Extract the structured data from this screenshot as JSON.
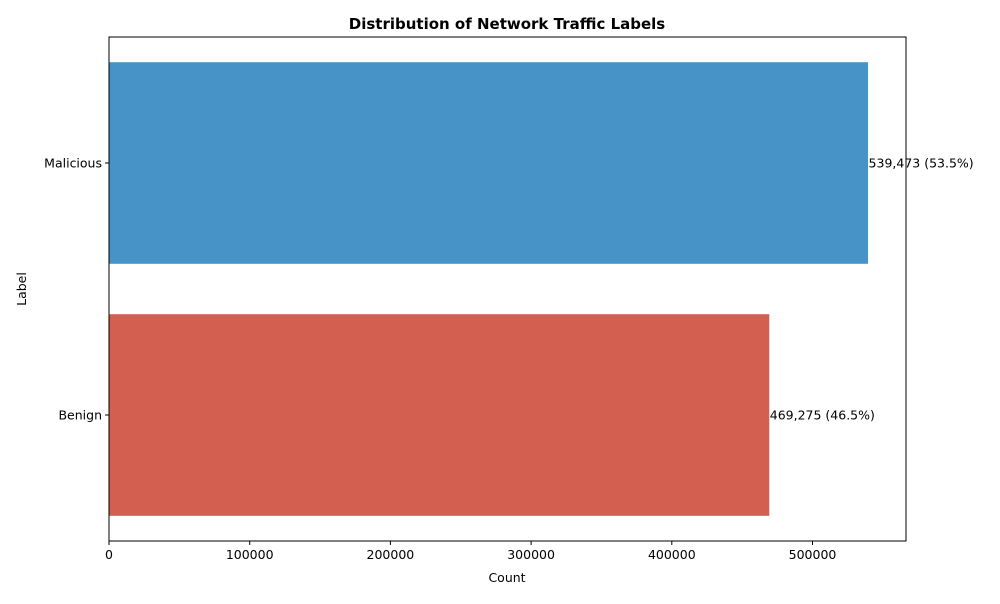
{
  "chart_data": {
    "type": "bar",
    "orientation": "horizontal",
    "title": "Distribution of Network Traffic Labels",
    "xlabel": "Count",
    "ylabel": "Label",
    "categories": [
      "Malicious",
      "Benign"
    ],
    "values": [
      539473,
      469275
    ],
    "percentages": [
      53.5,
      46.5
    ],
    "data_labels": [
      "539,473 (53.5%)",
      "469,275 (46.5%)"
    ],
    "colors": [
      "#4793c7",
      "#d35f51"
    ],
    "xlim": [
      0,
      566447
    ],
    "xticks": [
      0,
      100000,
      200000,
      300000,
      400000,
      500000
    ],
    "xtick_labels": [
      "0",
      "100000",
      "200000",
      "300000",
      "400000",
      "500000"
    ],
    "grid": false,
    "legend": "none"
  }
}
